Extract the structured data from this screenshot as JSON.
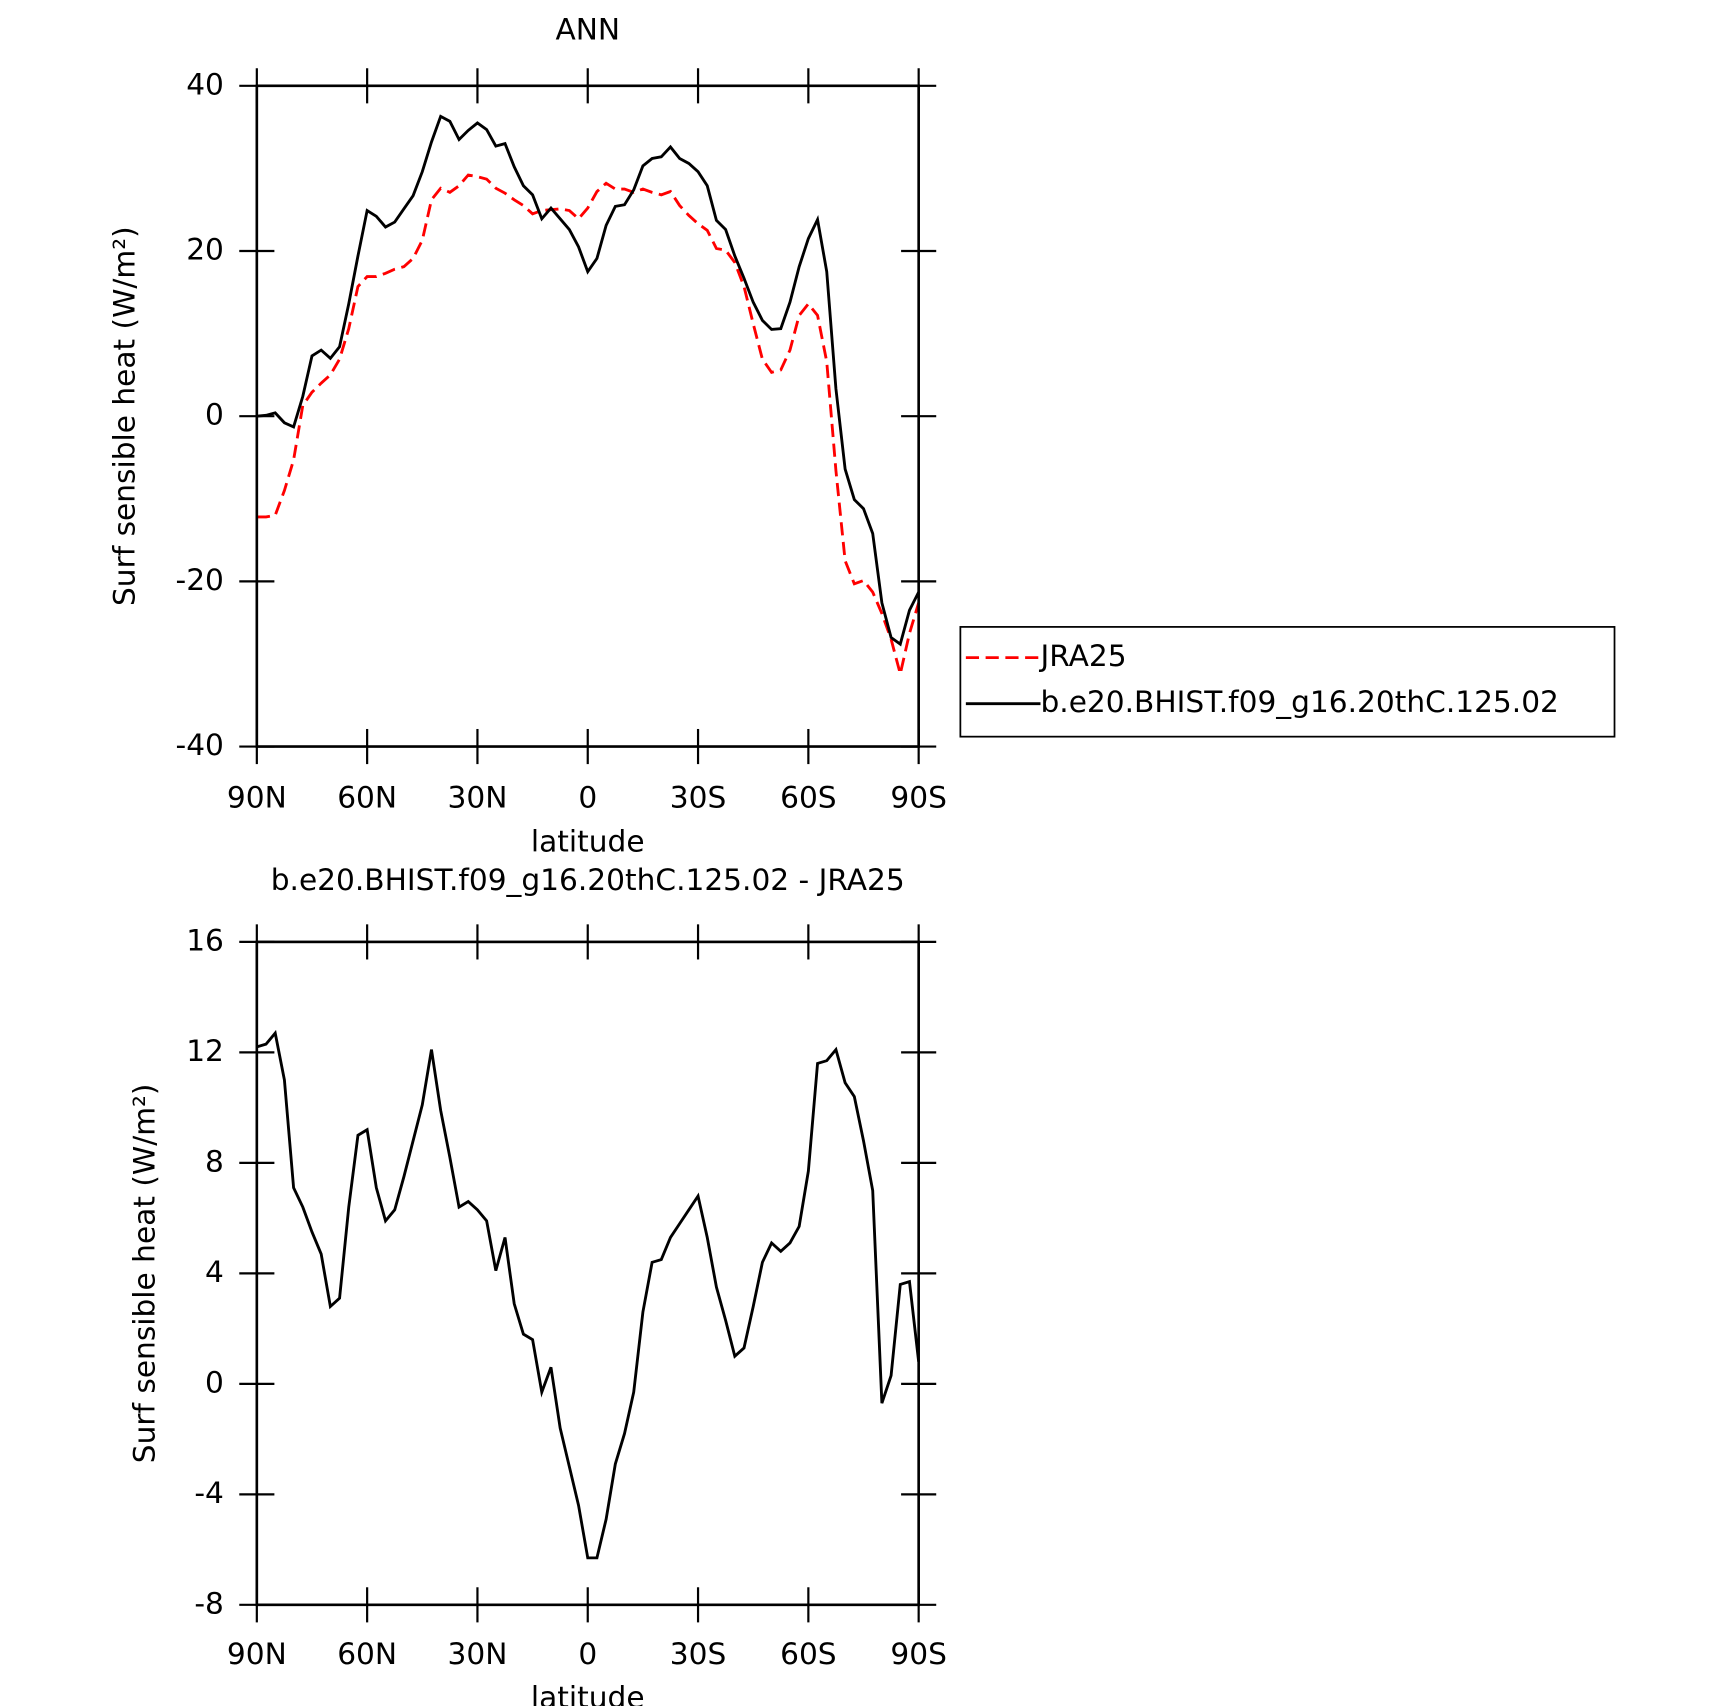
{
  "chart_data": [
    {
      "type": "line",
      "title": "ANN",
      "xlabel": "latitude",
      "ylabel": "Surf sensible heat (W/m²)",
      "xlim": [
        90,
        -90
      ],
      "ylim": [
        -40,
        40
      ],
      "xticks": [
        {
          "value": 90,
          "label": "90N"
        },
        {
          "value": 60,
          "label": "60N"
        },
        {
          "value": 30,
          "label": "30N"
        },
        0,
        {
          "value": -30,
          "label": "30S"
        },
        {
          "value": -60,
          "label": "60S"
        },
        {
          "value": -90,
          "label": "90S"
        }
      ],
      "yticks": [
        -40,
        -20,
        0,
        20,
        40
      ],
      "legend": "right",
      "x": [
        90,
        87.5,
        85,
        82.5,
        80,
        77.5,
        75,
        72.5,
        70,
        67.5,
        65,
        62.5,
        60,
        57.5,
        55,
        52.5,
        50,
        47.5,
        45,
        42.5,
        40,
        37.5,
        35,
        32.5,
        30,
        27.5,
        25,
        22.5,
        20,
        17.5,
        15,
        12.5,
        10,
        7.5,
        5,
        2.5,
        0,
        -2.5,
        -5,
        -7.5,
        -10,
        -12.5,
        -15,
        -17.5,
        -20,
        -22.5,
        -25,
        -27.5,
        -30,
        -32.5,
        -35,
        -37.5,
        -40,
        -42.5,
        -45,
        -47.5,
        -50,
        -52.5,
        -55,
        -57.5,
        -60,
        -62.5,
        -65,
        -67.5,
        -70,
        -72.5,
        -75,
        -77.5,
        -80,
        -82.5,
        -85,
        -87.5,
        -90
      ],
      "series": [
        {
          "name": "JRA25",
          "color": "#ff0000",
          "dash": "dashed",
          "values": [
            -12.2,
            -12.2,
            -12.0,
            -9.0,
            -5.3,
            1.3,
            2.9,
            4.0,
            5.0,
            6.9,
            10.6,
            15.7,
            16.9,
            16.9,
            17.3,
            17.8,
            18.1,
            19.1,
            21.3,
            26.2,
            27.6,
            27.1,
            27.9,
            29.2,
            29.0,
            28.7,
            27.6,
            27.0,
            26.2,
            25.5,
            24.5,
            24.9,
            25.0,
            25.1,
            24.9,
            23.9,
            25.2,
            27.2,
            28.2,
            27.5,
            27.5,
            27.1,
            27.5,
            27.1,
            26.8,
            27.2,
            25.5,
            24.3,
            23.3,
            22.5,
            20.3,
            20.1,
            18.6,
            15.7,
            11.2,
            6.9,
            5.3,
            5.6,
            8.0,
            12.2,
            13.6,
            12.2,
            6.6,
            -6.6,
            -17.5,
            -20.3,
            -19.9,
            -21.3,
            -23.9,
            -27.0,
            -31.2,
            -26.3,
            -22.6
          ]
        },
        {
          "name": "b.e20.BHIST.f09_g16.20thC.125.02",
          "color": "#000000",
          "dash": "solid",
          "values": [
            0,
            0.1,
            0.4,
            -0.8,
            -1.3,
            2.4,
            7.3,
            8.0,
            7.0,
            8.4,
            13.6,
            19.4,
            24.9,
            24.2,
            22.9,
            23.5,
            25.1,
            26.7,
            29.6,
            33.2,
            36.3,
            35.7,
            33.5,
            34.6,
            35.5,
            34.7,
            32.7,
            33.0,
            30.2,
            27.9,
            26.8,
            23.9,
            25.2,
            23.9,
            22.6,
            20.5,
            17.5,
            19.1,
            23.1,
            25.4,
            25.6,
            27.4,
            30.3,
            31.2,
            31.4,
            32.6,
            31.2,
            30.6,
            29.6,
            27.9,
            23.7,
            22.6,
            19.4,
            16.7,
            13.8,
            11.6,
            10.5,
            10.6,
            13.8,
            18.1,
            21.5,
            23.8,
            17.5,
            3.3,
            -6.4,
            -10.1,
            -11.2,
            -14.2,
            -22.6,
            -26.8,
            -27.6,
            -23.5,
            -21.3
          ]
        }
      ]
    },
    {
      "type": "line",
      "title": "b.e20.BHIST.f09_g16.20thC.125.02 - JRA25",
      "xlabel": "latitude",
      "ylabel": "Surf sensible heat (W/m²)",
      "xlim": [
        90,
        -90
      ],
      "ylim": [
        -8,
        16
      ],
      "xticks": [
        {
          "value": 90,
          "label": "90N"
        },
        {
          "value": 60,
          "label": "60N"
        },
        {
          "value": 30,
          "label": "30N"
        },
        0,
        {
          "value": -30,
          "label": "30S"
        },
        {
          "value": -60,
          "label": "60S"
        },
        {
          "value": -90,
          "label": "90S"
        }
      ],
      "yticks": [
        -8,
        -4,
        0,
        4,
        8,
        12,
        16
      ],
      "x": [
        90,
        87.5,
        85,
        82.5,
        80,
        77.5,
        75,
        72.5,
        70,
        67.5,
        65,
        62.5,
        60,
        57.5,
        55,
        52.5,
        50,
        47.5,
        45,
        42.5,
        40,
        37.5,
        35,
        32.5,
        30,
        27.5,
        25,
        22.5,
        20,
        17.5,
        15,
        12.5,
        10,
        7.5,
        5,
        2.5,
        0,
        -2.5,
        -5,
        -7.5,
        -10,
        -12.5,
        -15,
        -17.5,
        -20,
        -22.5,
        -25,
        -27.5,
        -30,
        -32.5,
        -35,
        -37.5,
        -40,
        -42.5,
        -45,
        -47.5,
        -50,
        -52.5,
        -55,
        -57.5,
        -60,
        -62.5,
        -65,
        -67.5,
        -70,
        -72.5,
        -75,
        -77.5,
        -80,
        -82.5,
        -85,
        -87.5,
        -90
      ],
      "series": [
        {
          "color": "#000000",
          "dash": "solid",
          "values": [
            12.2,
            12.3,
            12.7,
            11.0,
            7.1,
            6.4,
            5.5,
            4.7,
            2.8,
            3.1,
            6.4,
            9.0,
            9.2,
            7.1,
            5.9,
            6.3,
            7.5,
            8.8,
            10.1,
            12.1,
            9.9,
            8.2,
            6.4,
            6.6,
            6.3,
            5.9,
            4.1,
            5.3,
            2.9,
            1.8,
            1.6,
            -0.3,
            0.6,
            -1.6,
            -3.0,
            -4.4,
            -6.3,
            -6.3,
            -4.9,
            -2.9,
            -1.8,
            -0.3,
            2.6,
            4.4,
            4.5,
            5.3,
            5.8,
            6.3,
            6.8,
            5.3,
            3.5,
            2.3,
            1.0,
            1.3,
            2.8,
            4.4,
            5.1,
            4.8,
            5.1,
            5.7,
            7.7,
            11.6,
            11.7,
            12.1,
            10.9,
            10.4,
            8.8,
            7.0,
            -0.7,
            0.3,
            3.6,
            3.7,
            0.8
          ]
        }
      ]
    }
  ]
}
